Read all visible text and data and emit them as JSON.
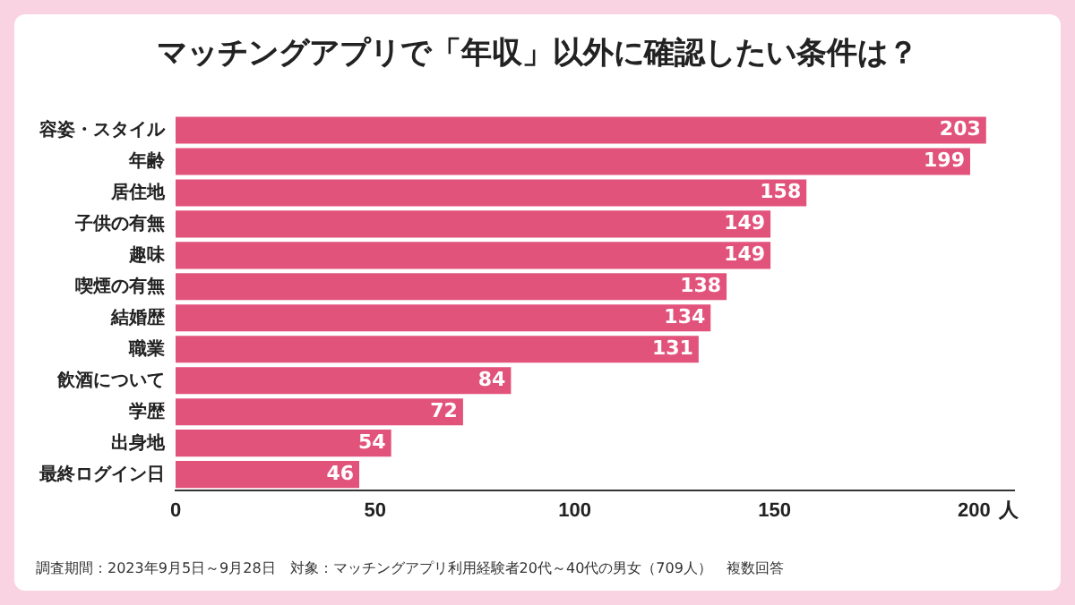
{
  "chart_data": {
    "type": "bar",
    "orientation": "horizontal",
    "title": "マッチングアプリで「年収」以外に確認したい条件は？",
    "categories": [
      "容姿・スタイル",
      "年齢",
      "居住地",
      "子供の有無",
      "趣味",
      "喫煙の有無",
      "結婚歴",
      "職業",
      "飲酒について",
      "学歴",
      "出身地",
      "最終ログイン日"
    ],
    "values": [
      203,
      199,
      158,
      149,
      149,
      138,
      134,
      131,
      84,
      72,
      54,
      46
    ],
    "color": "#e2537c",
    "xlim": [
      0,
      210
    ],
    "xticks": [
      0,
      50,
      100,
      150,
      200
    ],
    "xlabel": "人",
    "data_labels": true,
    "grid": false,
    "legend": false,
    "annotations": [
      "調査期間：2023年9月5日～9月28日　対象：マッチングアプリ利用経験者20代～40代の男女（709人）　複数回答"
    ]
  }
}
